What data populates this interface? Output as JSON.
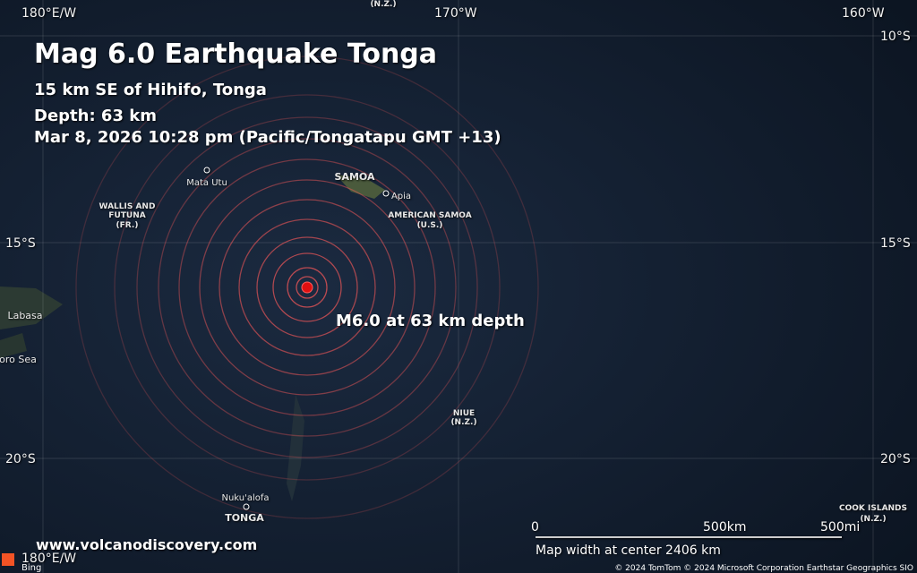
{
  "header": {
    "title": "Mag 6.0 Earthquake Tonga",
    "location": "15 km SE of Hihifo, Tonga",
    "depth": "Depth: 63 km",
    "time": "Mar 8, 2026 10:28 pm (Pacific/Tongatapu GMT +13)"
  },
  "epicenter_label": "M6.0 at 63 km depth",
  "website": "www.volcanodiscovery.com",
  "graticule": {
    "top": [
      "180°E/W",
      "170°W",
      "160°W"
    ],
    "left": [
      "15°S",
      "20°S"
    ],
    "right": [
      "10°S",
      "15°S",
      "20°S"
    ],
    "bottom": [
      "180°E/W"
    ]
  },
  "places": [
    {
      "lines": [
        "(N.Z.)"
      ]
    },
    {
      "lines": [
        "Mata Utu"
      ]
    },
    {
      "lines": [
        "SAMOA"
      ]
    },
    {
      "lines": [
        "Apia"
      ]
    },
    {
      "lines": [
        "WALLIS AND",
        "FUTUNA",
        "(FR.)"
      ]
    },
    {
      "lines": [
        "AMERICAN SAMOA",
        "(U.S.)"
      ]
    },
    {
      "lines": [
        "Labasa"
      ]
    },
    {
      "lines": [
        "oro Sea"
      ]
    },
    {
      "lines": [
        "NIUE",
        "(N.Z.)"
      ]
    },
    {
      "lines": [
        "Nuku'alofa"
      ]
    },
    {
      "lines": [
        "TONGA"
      ]
    },
    {
      "lines": [
        "COOK ISLANDS",
        "(N.Z.)"
      ]
    }
  ],
  "scale": {
    "zero": "0",
    "km": "500km",
    "mi": "500mi",
    "caption": "Map width at center 2406 km"
  },
  "attribution": "© 2024 TomTom © 2024 Microsoft Corporation Earthstar Geographics SIO",
  "logo": "Bing"
}
